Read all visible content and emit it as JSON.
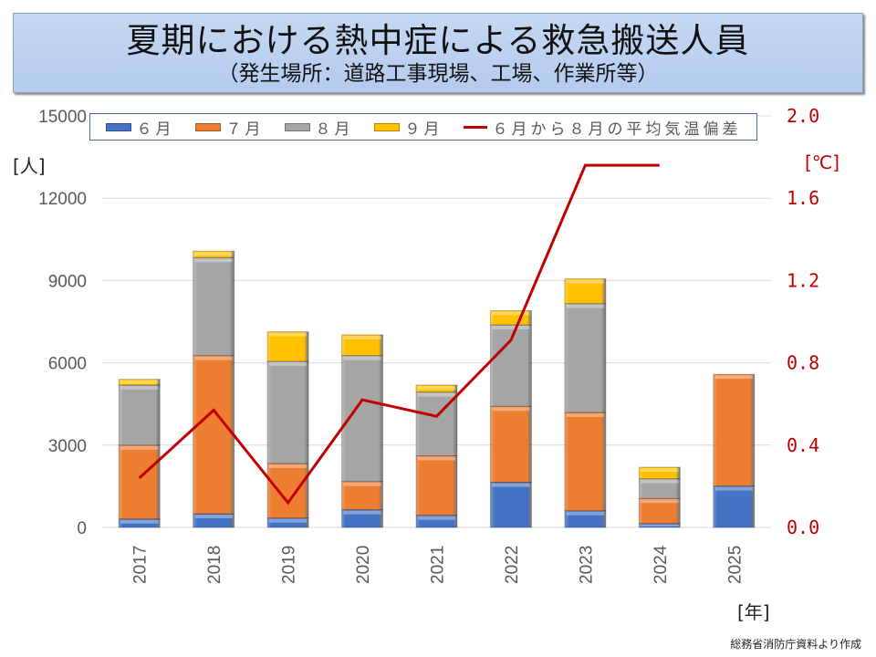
{
  "title": "夏期における熱中症による救急搬送人員",
  "subtitle": "（発生場所：道路工事現場、工場、作業所等）",
  "source": "総務省消防庁資料より作成",
  "chart_data": {
    "type": "bar",
    "stacked": true,
    "categories": [
      "2017",
      "2018",
      "2019",
      "2020",
      "2021",
      "2022",
      "2023",
      "2024",
      "2025"
    ],
    "series": [
      {
        "name": "６月",
        "color": "#4472c4",
        "values": [
          310,
          500,
          345,
          645,
          445,
          1645,
          610,
          145,
          1510
        ]
      },
      {
        "name": "７月",
        "color": "#ed7d31",
        "values": [
          2690,
          5765,
          1985,
          1030,
          2165,
          2770,
          3580,
          910,
          4070
        ]
      },
      {
        "name": "８月",
        "color": "#a5a5a5",
        "values": [
          2190,
          3570,
          3725,
          4590,
          2325,
          2970,
          3970,
          720,
          null
        ]
      },
      {
        "name": "９月",
        "color": "#ffc000",
        "values": [
          210,
          235,
          1075,
          755,
          255,
          515,
          900,
          420,
          null
        ]
      }
    ],
    "line_series": {
      "name": "６月から８月の平均気温偏差",
      "color": "#c00000",
      "axis": "right",
      "values": [
        0.24,
        0.57,
        0.12,
        0.62,
        0.54,
        0.91,
        1.76,
        1.76,
        null
      ]
    },
    "ylim": [
      0,
      15000
    ],
    "yticks": [
      "0",
      "3000",
      "6000",
      "9000",
      "12000",
      "15000"
    ],
    "y2lim": [
      0,
      2.0
    ],
    "y2ticks": [
      "0.0",
      "0.4",
      "0.8",
      "1.2",
      "1.6",
      "2.0"
    ],
    "ylabel": "[人]",
    "y2label": "[℃]",
    "xlabel": "[年]",
    "grid": true,
    "legend_position": "top"
  }
}
